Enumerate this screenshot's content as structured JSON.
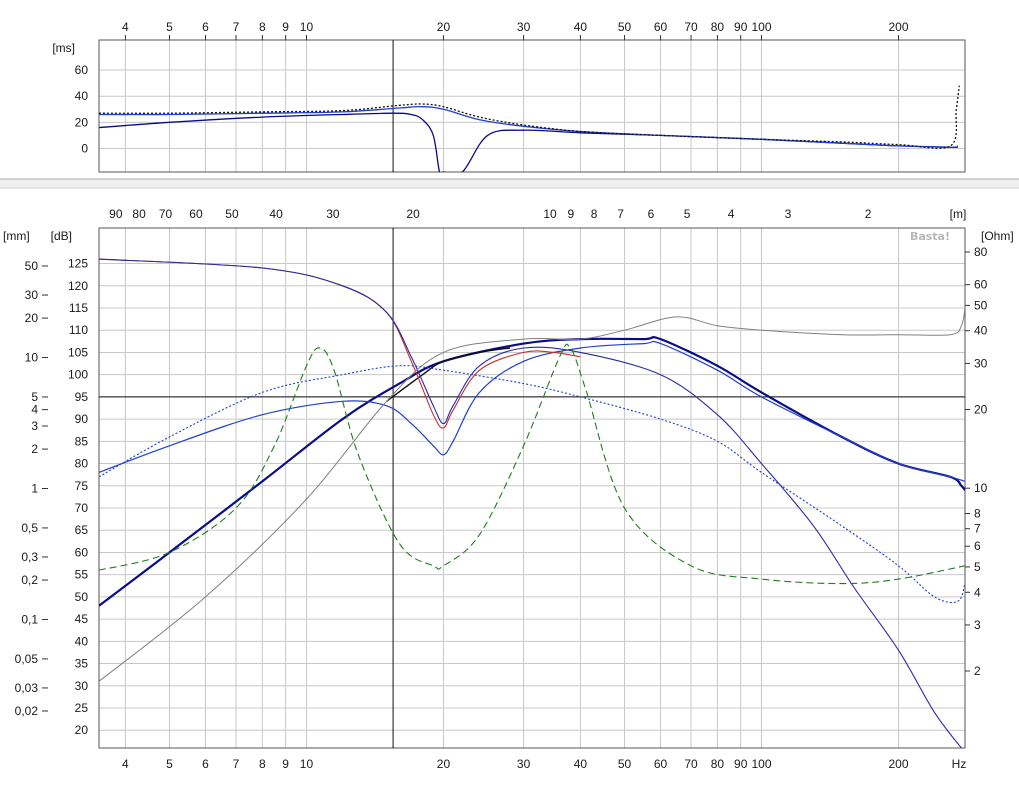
{
  "app": {
    "watermark": "Basta!"
  },
  "chart_data": [
    {
      "type": "line",
      "panel": "group-delay",
      "ylabel": "[ms]",
      "xscale": "log",
      "xlim": [
        3.5,
        280
      ],
      "ylim": [
        -18,
        83
      ],
      "x_ticks": [
        4,
        5,
        6,
        7,
        8,
        9,
        10,
        20,
        30,
        40,
        50,
        60,
        70,
        80,
        90,
        100,
        200
      ],
      "y_ticks": [
        0,
        20,
        40,
        60
      ],
      "cursor_x": 15.5,
      "grid": true,
      "series": [
        {
          "color": "#0a0a8c",
          "style": "solid",
          "x": [
            3.5,
            5,
            8,
            12,
            15.5,
            17,
            18,
            19,
            19.6,
            20,
            22,
            25,
            30,
            40,
            60,
            100,
            150,
            200,
            260,
            270
          ],
          "y": [
            16,
            20,
            24,
            26,
            27,
            26,
            22,
            10,
            -18,
            -18,
            -18,
            10,
            14,
            12,
            10,
            7,
            4,
            2,
            1,
            1
          ]
        },
        {
          "color": "#1f3fd0",
          "style": "solid",
          "x": [
            3.5,
            5,
            8,
            12,
            16,
            18,
            20,
            24,
            30,
            40,
            60,
            100,
            150,
            200,
            260,
            270
          ],
          "y": [
            26,
            26,
            27,
            28,
            31,
            32,
            30,
            22,
            17,
            13,
            10,
            7,
            4,
            2,
            1,
            2
          ]
        },
        {
          "color": "#111111",
          "style": "dotted",
          "x": [
            3.5,
            5,
            8,
            12,
            16,
            18,
            20,
            24,
            30,
            40,
            60,
            100,
            150,
            200,
            260,
            268,
            272
          ],
          "y": [
            27,
            27,
            28,
            29,
            33,
            34,
            32,
            24,
            18,
            13,
            10,
            7,
            5,
            3,
            2,
            30,
            48
          ]
        }
      ]
    },
    {
      "type": "line",
      "panel": "spl-impedance",
      "ylabel": "[dB]",
      "ylabel_left_outer": "[mm]",
      "ylabel_right": "[Ohm]",
      "top_axis_unit": "[m]",
      "xlabel": "Hz",
      "xscale": "log",
      "xlim": [
        3.5,
        280
      ],
      "ylim": [
        16,
        133
      ],
      "x_ticks": [
        4,
        5,
        6,
        7,
        8,
        9,
        10,
        20,
        30,
        40,
        50,
        60,
        70,
        80,
        90,
        100,
        200
      ],
      "x_ticks_labels": [
        "4",
        "5",
        "6",
        "7",
        "8",
        "9",
        "10",
        "20",
        "30",
        "40",
        "50",
        "60",
        "70",
        "80",
        "90",
        "100",
        "200"
      ],
      "top_ticks_m": [
        "90",
        "80",
        "70",
        "60",
        "50",
        "40",
        "30",
        "20",
        "10",
        "9",
        "8",
        "7",
        "6",
        "5",
        "4",
        "3",
        "2"
      ],
      "y_ticks_db": [
        20,
        25,
        30,
        35,
        40,
        45,
        50,
        55,
        60,
        65,
        70,
        75,
        80,
        85,
        90,
        95,
        100,
        105,
        110,
        115,
        120,
        125
      ],
      "y_ticks_mm": [
        "50",
        "30",
        "20",
        "10",
        "5",
        "4",
        "3",
        "2",
        "1",
        "0,5",
        "0,3",
        "0,2",
        "0,1",
        "0,05",
        "0,03",
        "0,02"
      ],
      "y_ticks_ohm": [
        "80",
        "60",
        "50",
        "40",
        "30",
        "20",
        "10",
        "8",
        "7",
        "6",
        "5",
        "4",
        "3",
        "2"
      ],
      "reference_line_db": 95,
      "cursor_x": 15.5,
      "grid": true,
      "series": [
        {
          "color": "#0a0a8c",
          "style": "solid",
          "width": 2.2,
          "x": [
            3.5,
            5,
            8,
            12,
            16,
            20,
            30,
            40,
            55,
            60,
            80,
            100,
            150,
            200,
            260,
            275,
            280
          ],
          "y": [
            48,
            60,
            76,
            90,
            98,
            103,
            107,
            108,
            108,
            108,
            102,
            96,
            86,
            80,
            77,
            75,
            74
          ]
        },
        {
          "color": "#1f3fd0",
          "style": "solid",
          "width": 1.2,
          "x": [
            3.5,
            5,
            8,
            12,
            15,
            17,
            19,
            20,
            21,
            24,
            30,
            40,
            55,
            60,
            80,
            100,
            150,
            200,
            260,
            280
          ],
          "y": [
            78,
            84,
            91,
            94,
            93,
            89,
            84,
            82,
            85,
            96,
            103,
            106,
            107,
            107,
            101,
            95,
            86,
            80,
            77,
            76
          ]
        },
        {
          "color": "#111111",
          "style": "solid",
          "width": 1.4,
          "x": [
            15,
            18,
            20,
            24,
            28
          ],
          "y": [
            94,
            100,
            103,
            105,
            106
          ]
        },
        {
          "color": "#c03030",
          "style": "solid",
          "width": 1.1,
          "x": [
            3.5,
            8,
            12,
            15,
            17,
            19,
            20,
            21,
            24,
            30,
            35,
            40
          ],
          "y": [
            126,
            124,
            120,
            114,
            103,
            91,
            88,
            92,
            101,
            105,
            105,
            104
          ]
        },
        {
          "color": "#2a2aa8",
          "style": "solid",
          "width": 1.1,
          "x": [
            3.5,
            8,
            12,
            15,
            17,
            19,
            20,
            21,
            24,
            30,
            40,
            60,
            80,
            100,
            130,
            160,
            200,
            240,
            280
          ],
          "y": [
            126,
            124,
            120,
            114,
            104,
            93,
            89,
            93,
            102,
            106,
            105,
            100,
            91,
            80,
            66,
            52,
            38,
            24,
            15
          ]
        },
        {
          "color": "#1f3fd0",
          "style": "dotted",
          "width": 1.1,
          "x": [
            3.5,
            5,
            8,
            12,
            16,
            20,
            30,
            40,
            60,
            80,
            100,
            150,
            200,
            240,
            270,
            280
          ],
          "y": [
            77,
            86,
            96,
            100,
            102,
            101,
            98,
            95,
            90,
            85,
            78,
            66,
            57,
            50,
            49,
            53
          ]
        },
        {
          "color": "#1e7d1e",
          "style": "dashed",
          "width": 1.1,
          "x": [
            3.5,
            5,
            7,
            8.5,
            10,
            10.7,
            11.5,
            13,
            16,
            19,
            20,
            24,
            30,
            36,
            38,
            41,
            50,
            70,
            100,
            150,
            200,
            280
          ],
          "y": [
            56,
            60,
            70,
            84,
            102,
            106,
            101,
            82,
            62,
            57,
            57,
            64,
            84,
            104,
            106,
            97,
            70,
            57,
            54,
            53,
            54,
            57
          ]
        },
        {
          "color": "#808080",
          "style": "solid",
          "width": 1,
          "x": [
            3.5,
            6,
            10,
            15,
            20,
            30,
            40,
            50,
            65,
            80,
            100,
            150,
            200,
            260,
            275,
            280
          ],
          "y": [
            31,
            50,
            72,
            94,
            105,
            108,
            108,
            110,
            113,
            111,
            110,
            109,
            109,
            109,
            111,
            115
          ]
        }
      ]
    }
  ]
}
